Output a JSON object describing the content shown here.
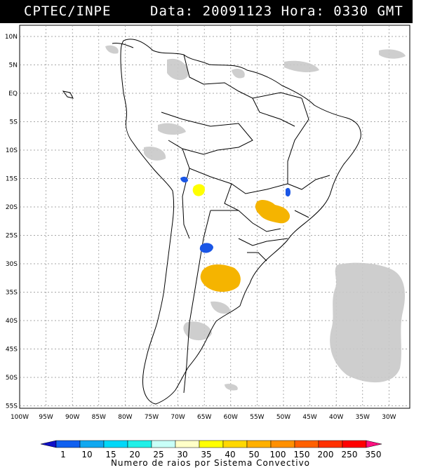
{
  "header": {
    "agency": "CPTEC/INPE",
    "date_label": "Data:",
    "date_value": "20091123",
    "time_label": "Hora:",
    "time_value": "0330 GMT"
  },
  "map": {
    "lat_labels": [
      "10N",
      "5N",
      "EQ",
      "5S",
      "10S",
      "15S",
      "20S",
      "25S",
      "30S",
      "35S",
      "40S",
      "45S",
      "50S",
      "55S"
    ],
    "lon_labels": [
      "100W",
      "95W",
      "90W",
      "85W",
      "80W",
      "75W",
      "70W",
      "65W",
      "60W",
      "55W",
      "50W",
      "45W",
      "40W",
      "35W",
      "30W"
    ],
    "colors": {
      "blue": "#1a56e6",
      "yellow": "#ffff00",
      "orange": "#f5b400",
      "cloud": "#c8c8c8"
    }
  },
  "colorbar": {
    "ticks": [
      "1",
      "10",
      "15",
      "20",
      "25",
      "30",
      "35",
      "40",
      "50",
      "100",
      "150",
      "200",
      "250",
      "350"
    ],
    "colors": [
      "#1010c8",
      "#1060f0",
      "#10a8f0",
      "#00d8f8",
      "#20f0e8",
      "#c8fff8",
      "#ffffc8",
      "#ffff00",
      "#ffd800",
      "#ffb000",
      "#ff9000",
      "#ff6000",
      "#ff3000",
      "#ff0000",
      "#ff1080"
    ],
    "caption": "Numero de raios por Sistema Convectivo"
  }
}
